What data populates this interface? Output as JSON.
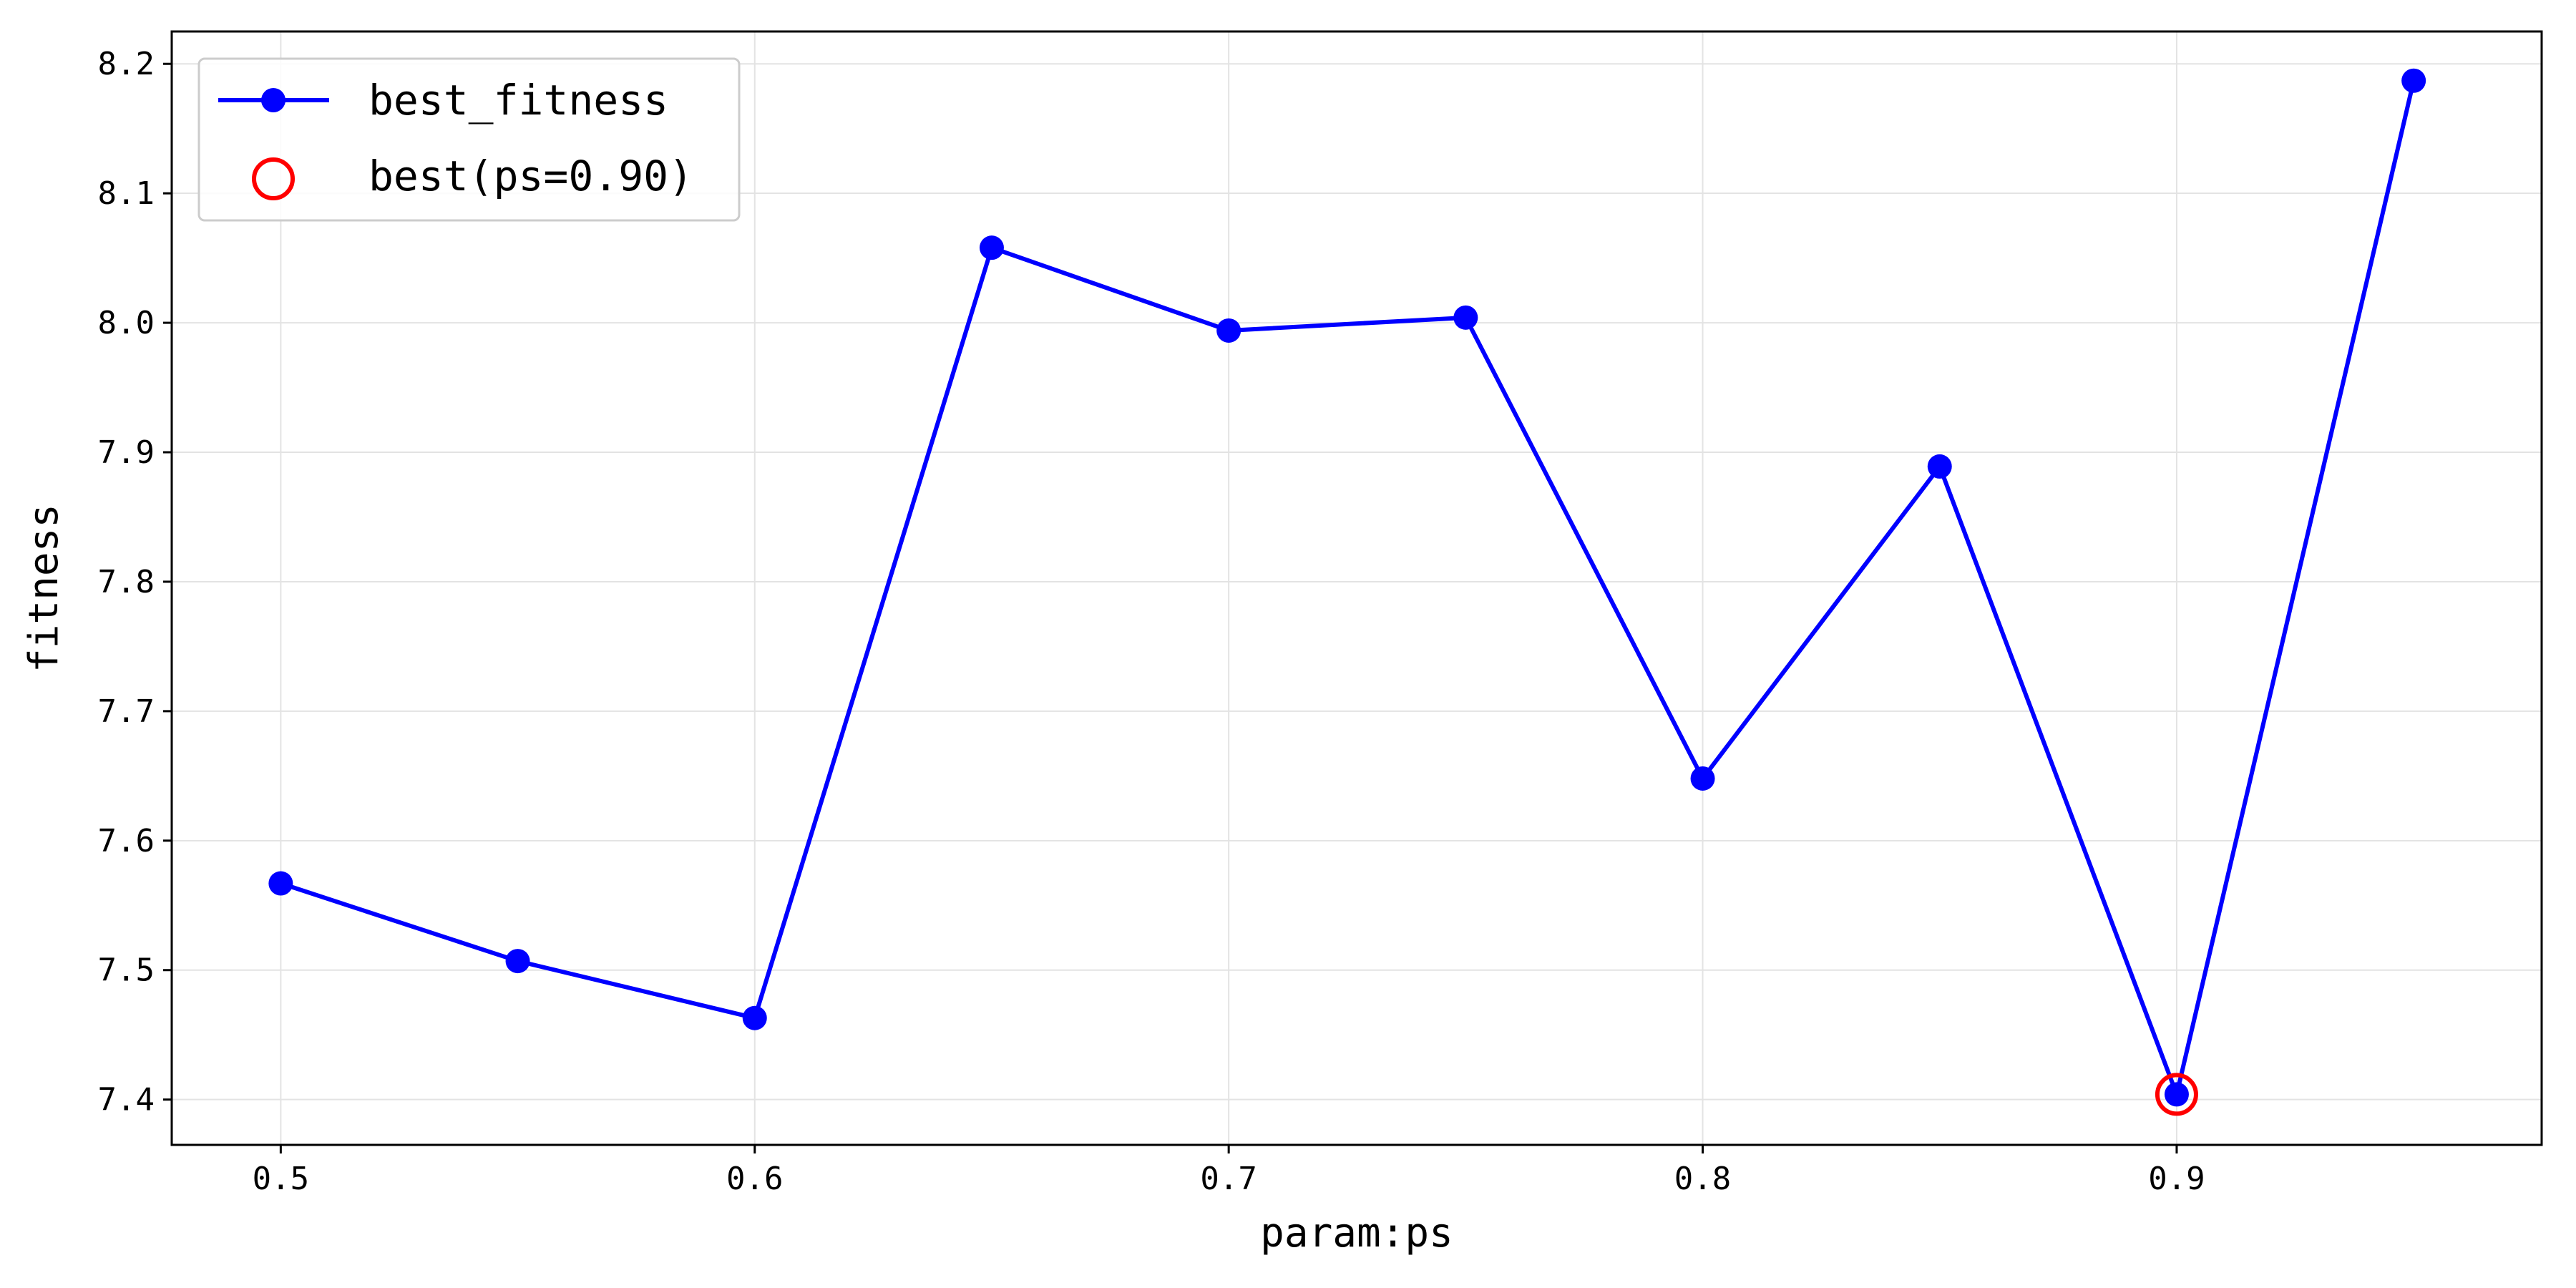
{
  "chart_data": {
    "type": "line",
    "xlabel": "param:ps",
    "ylabel": "fitness",
    "xlim": [
      0.477,
      0.977
    ],
    "ylim": [
      7.365,
      8.225
    ],
    "xticks": [
      0.5,
      0.6,
      0.7,
      0.8,
      0.9
    ],
    "xtick_labels": [
      "0.5",
      "0.6",
      "0.7",
      "0.8",
      "0.9"
    ],
    "yticks": [
      7.4,
      7.5,
      7.6,
      7.7,
      7.8,
      7.9,
      8.0,
      8.1,
      8.2
    ],
    "ytick_labels": [
      "7.4",
      "7.5",
      "7.6",
      "7.7",
      "7.8",
      "7.9",
      "8.0",
      "8.1",
      "8.2"
    ],
    "grid": true,
    "legend_position": "top-left",
    "series": [
      {
        "name": "best_fitness",
        "color": "#0000ff",
        "marker": "filled-circle",
        "x": [
          0.5,
          0.55,
          0.6,
          0.65,
          0.7,
          0.75,
          0.8,
          0.85,
          0.9,
          0.95
        ],
        "y": [
          7.567,
          7.507,
          7.463,
          8.058,
          7.994,
          8.004,
          7.648,
          7.889,
          7.404,
          8.187
        ]
      }
    ],
    "highlight": {
      "name": "best(ps=0.90)",
      "color": "#ff0000",
      "marker": "hollow-circle",
      "x": 0.9,
      "y": 7.404
    }
  }
}
